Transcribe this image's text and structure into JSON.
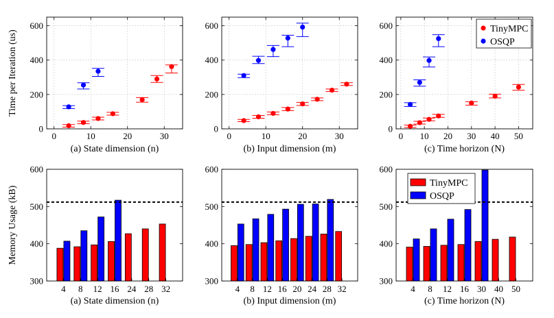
{
  "chart_data": [
    {
      "id": "time-n",
      "type": "scatter",
      "caption": "(a) State dimension (n)",
      "ylabel": "Time per Iteration (us)",
      "xlim": [
        -2,
        35
      ],
      "ylim": [
        0,
        650
      ],
      "xticks": [
        0,
        10,
        20,
        30
      ],
      "yticks": [
        0,
        200,
        400,
        600
      ],
      "grid": true,
      "series": [
        {
          "name": "TinyMPC",
          "color": "#ff0000",
          "points": [
            {
              "x": 4,
              "y": 18,
              "lo": 10,
              "hi": 25
            },
            {
              "x": 8,
              "y": 37,
              "lo": 30,
              "hi": 45
            },
            {
              "x": 12,
              "y": 60,
              "lo": 52,
              "hi": 68
            },
            {
              "x": 16,
              "y": 88,
              "lo": 80,
              "hi": 96
            },
            {
              "x": 24,
              "y": 170,
              "lo": 155,
              "hi": 182
            },
            {
              "x": 28,
              "y": 290,
              "lo": 270,
              "hi": 310
            },
            {
              "x": 32,
              "y": 362,
              "lo": 325,
              "hi": 372
            }
          ]
        },
        {
          "name": "OSQP",
          "color": "#0000ff",
          "points": [
            {
              "x": 4,
              "y": 128,
              "lo": 118,
              "hi": 135
            },
            {
              "x": 8,
              "y": 255,
              "lo": 232,
              "hi": 268
            },
            {
              "x": 12,
              "y": 335,
              "lo": 305,
              "hi": 352
            }
          ]
        }
      ]
    },
    {
      "id": "time-m",
      "type": "scatter",
      "caption": "(b) Input dimension (m)",
      "ylabel": "",
      "xlim": [
        -2,
        35
      ],
      "ylim": [
        0,
        650
      ],
      "xticks": [
        0,
        10,
        20,
        30
      ],
      "yticks": [
        0,
        200,
        400,
        600
      ],
      "grid": true,
      "series": [
        {
          "name": "TinyMPC",
          "color": "#ff0000",
          "points": [
            {
              "x": 4,
              "y": 48,
              "lo": 42,
              "hi": 55
            },
            {
              "x": 8,
              "y": 70,
              "lo": 62,
              "hi": 78
            },
            {
              "x": 12,
              "y": 90,
              "lo": 82,
              "hi": 98
            },
            {
              "x": 16,
              "y": 115,
              "lo": 106,
              "hi": 124
            },
            {
              "x": 20,
              "y": 145,
              "lo": 136,
              "hi": 154
            },
            {
              "x": 24,
              "y": 172,
              "lo": 164,
              "hi": 180
            },
            {
              "x": 28,
              "y": 225,
              "lo": 217,
              "hi": 232
            },
            {
              "x": 32,
              "y": 260,
              "lo": 252,
              "hi": 268
            }
          ]
        },
        {
          "name": "OSQP",
          "color": "#0000ff",
          "points": [
            {
              "x": 4,
              "y": 310,
              "lo": 298,
              "hi": 318
            },
            {
              "x": 8,
              "y": 398,
              "lo": 380,
              "hi": 422
            },
            {
              "x": 12,
              "y": 462,
              "lo": 420,
              "hi": 485
            },
            {
              "x": 16,
              "y": 528,
              "lo": 478,
              "hi": 545
            },
            {
              "x": 20,
              "y": 592,
              "lo": 537,
              "hi": 615
            }
          ]
        }
      ]
    },
    {
      "id": "time-N",
      "type": "scatter",
      "caption": "(c) Time horizon (N)",
      "ylabel": "",
      "xlim": [
        -2,
        56
      ],
      "ylim": [
        0,
        650
      ],
      "xticks": [
        0,
        10,
        20,
        30,
        40,
        50
      ],
      "yticks": [
        0,
        200,
        400,
        600
      ],
      "grid": true,
      "legend": {
        "position": "top-right",
        "entries": [
          "TinyMPC",
          "OSQP"
        ]
      },
      "series": [
        {
          "name": "TinyMPC",
          "color": "#ff0000",
          "points": [
            {
              "x": 4,
              "y": 15,
              "lo": 8,
              "hi": 22
            },
            {
              "x": 8,
              "y": 36,
              "lo": 28,
              "hi": 44
            },
            {
              "x": 12,
              "y": 55,
              "lo": 47,
              "hi": 63
            },
            {
              "x": 16,
              "y": 75,
              "lo": 67,
              "hi": 84
            },
            {
              "x": 30,
              "y": 150,
              "lo": 138,
              "hi": 158
            },
            {
              "x": 40,
              "y": 190,
              "lo": 180,
              "hi": 202
            },
            {
              "x": 50,
              "y": 243,
              "lo": 225,
              "hi": 258
            }
          ]
        },
        {
          "name": "OSQP",
          "color": "#0000ff",
          "points": [
            {
              "x": 4,
              "y": 142,
              "lo": 130,
              "hi": 152
            },
            {
              "x": 8,
              "y": 270,
              "lo": 248,
              "hi": 285
            },
            {
              "x": 12,
              "y": 398,
              "lo": 360,
              "hi": 418
            },
            {
              "x": 16,
              "y": 525,
              "lo": 478,
              "hi": 548
            }
          ]
        }
      ]
    },
    {
      "id": "mem-n",
      "type": "bar",
      "caption": "(a) State dimension (n)",
      "ylabel": "Memory Usage (kB)",
      "ylim": [
        300,
        600
      ],
      "yticks": [
        300,
        400,
        500,
        600
      ],
      "reference_line": 512,
      "categories": [
        "4",
        "8",
        "12",
        "16",
        "24",
        "28",
        "32"
      ],
      "series": [
        {
          "name": "TinyMPC",
          "color": "#ff0000",
          "values": [
            388,
            392,
            397,
            406,
            427,
            440,
            453
          ]
        },
        {
          "name": "OSQP",
          "color": "#0000ff",
          "values": [
            407,
            435,
            472,
            517,
            null,
            null,
            null
          ]
        }
      ]
    },
    {
      "id": "mem-m",
      "type": "bar",
      "caption": "(b) Input dimension (m)",
      "ylabel": "",
      "ylim": [
        300,
        600
      ],
      "yticks": [
        300,
        400,
        500,
        600
      ],
      "reference_line": 512,
      "categories": [
        "4",
        "8",
        "12",
        "16",
        "20",
        "24",
        "28",
        "32"
      ],
      "series": [
        {
          "name": "TinyMPC",
          "color": "#ff0000",
          "values": [
            395,
            398,
            403,
            408,
            414,
            420,
            426,
            433
          ]
        },
        {
          "name": "OSQP",
          "color": "#0000ff",
          "values": [
            453,
            467,
            479,
            493,
            506,
            507,
            519,
            null
          ]
        }
      ]
    },
    {
      "id": "mem-N",
      "type": "bar",
      "caption": "(c) Time horizon (N)",
      "ylabel": "",
      "ylim": [
        300,
        600
      ],
      "yticks": [
        300,
        400,
        500,
        600
      ],
      "reference_line": 512,
      "legend": {
        "position": "top-left",
        "entries": [
          "TinyMPC",
          "OSQP"
        ]
      },
      "categories": [
        "4",
        "8",
        "12",
        "16",
        "30",
        "40",
        "50"
      ],
      "series": [
        {
          "name": "TinyMPC",
          "color": "#ff0000",
          "values": [
            391,
            393,
            396,
            398,
            406,
            412,
            418
          ]
        },
        {
          "name": "OSQP",
          "color": "#0000ff",
          "values": [
            413,
            440,
            466,
            492,
            598,
            null,
            null
          ]
        }
      ]
    }
  ]
}
